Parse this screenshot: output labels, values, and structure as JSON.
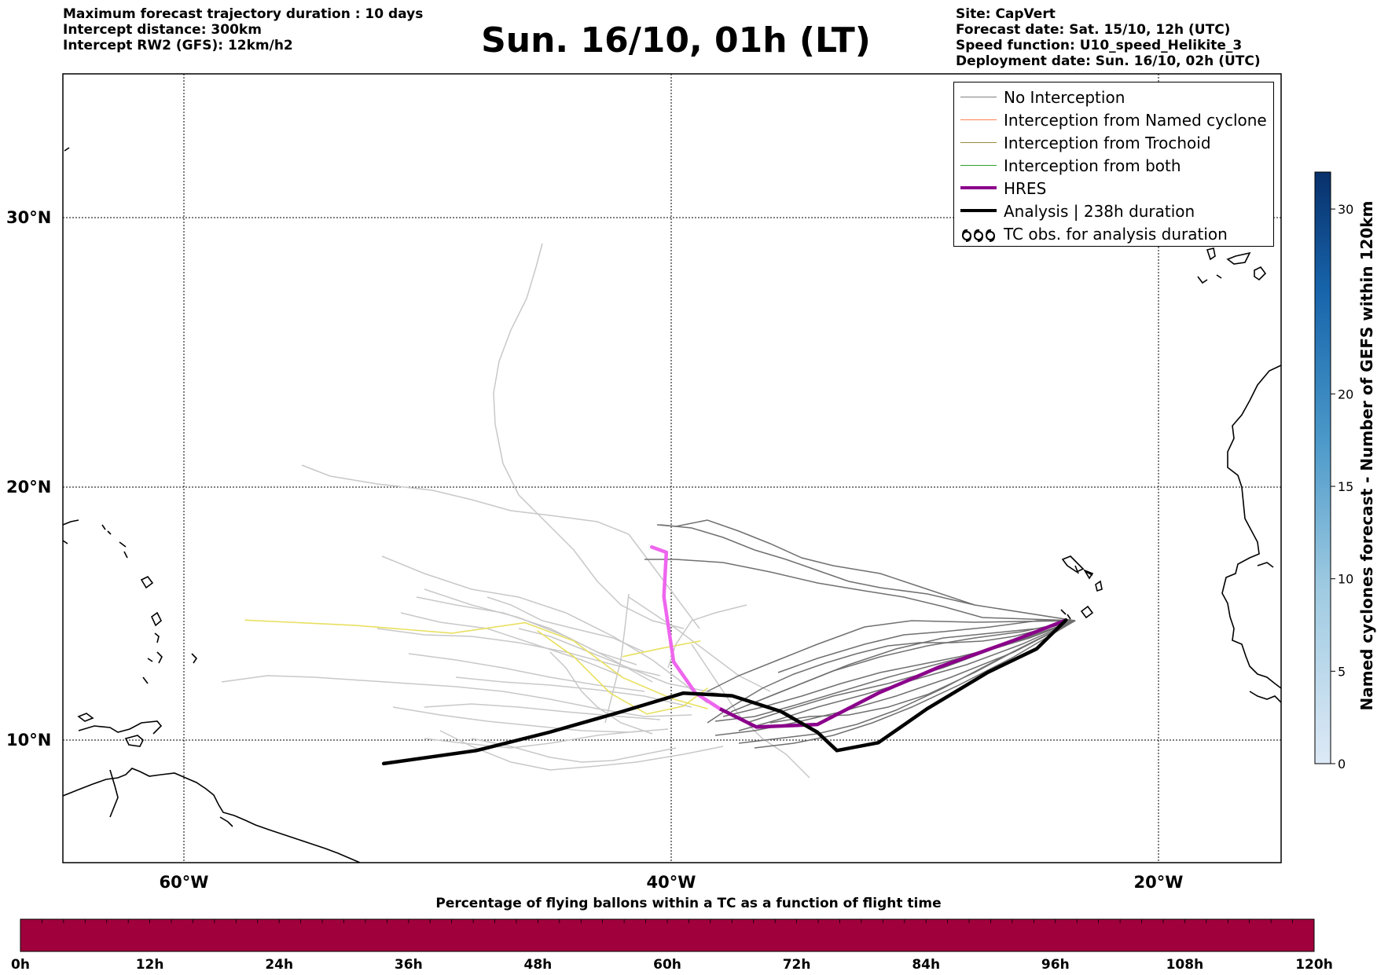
{
  "header_left": {
    "line1": "Maximum forecast trajectory duration : 10 days",
    "line2": "Intercept distance: 300km",
    "line3": "Intercept RW2 (GFS):  12km/h2"
  },
  "title": "Sun. 16/10, 01h (LT)",
  "header_right": {
    "line1": "Site: CapVert",
    "line2": "Forecast date: Sat. 15/10, 12h (UTC)",
    "line3": "Speed function: U10_speed_Helikite_3",
    "line4": "Deployment date: Sun. 16/10, 02h (UTC)"
  },
  "map": {
    "lon_range": [
      -65,
      -15
    ],
    "lat_range": [
      5,
      35
    ],
    "lat_labels": [
      "30°N",
      "20°N",
      "10°N"
    ],
    "lon_labels": [
      "60°W",
      "40°W",
      "20°W"
    ]
  },
  "legend": {
    "items": [
      {
        "label": "No Interception",
        "color": "#808080"
      },
      {
        "label": "Interception from Named cyclone",
        "color": "#ff7f50"
      },
      {
        "label": "Interception from Trochoid",
        "color": "#9a8a3a"
      },
      {
        "label": "Interception from both",
        "color": "#2ca02c"
      },
      {
        "label": "HRES",
        "color": "#8b008b"
      },
      {
        "label": "Analysis | 238h duration",
        "color": "#000000"
      },
      {
        "label": "TC obs. for analysis duration",
        "icon": "tc-symbol-icon"
      }
    ]
  },
  "right_colorbar": {
    "label": "Named cyclones forecast - Number of GEFS within 120km",
    "ticks": [
      "30",
      "20",
      "15",
      "10",
      "5",
      "0"
    ],
    "range": [
      0,
      32
    ]
  },
  "bottom_colorbar": {
    "caption": "Percentage of flying ballons within a TC as a function of flight time",
    "fill_color": "#a0003c",
    "ticks": [
      "0h",
      "12h",
      "24h",
      "36h",
      "48h",
      "60h",
      "72h",
      "84h",
      "96h",
      "108h",
      "120h"
    ]
  },
  "tracks": {
    "hres": [
      [
        -40.8,
        17.4
      ],
      [
        -40.2,
        17.2
      ],
      [
        -40.3,
        15.5
      ],
      [
        -39.9,
        13.0
      ],
      [
        -39.0,
        11.8
      ],
      [
        -38.0,
        11.2
      ],
      [
        -36.5,
        10.5
      ],
      [
        -34.0,
        10.6
      ],
      [
        -31.5,
        11.8
      ],
      [
        -29.0,
        12.8
      ],
      [
        -26.0,
        13.8
      ],
      [
        -23.8,
        14.6
      ]
    ],
    "analysis": [
      [
        -51.8,
        9.1
      ],
      [
        -48.0,
        9.6
      ],
      [
        -45.0,
        10.3
      ],
      [
        -42.0,
        11.1
      ],
      [
        -39.5,
        11.8
      ],
      [
        -37.5,
        11.7
      ],
      [
        -35.5,
        11.1
      ],
      [
        -34.0,
        10.3
      ],
      [
        -33.2,
        9.6
      ],
      [
        -31.5,
        9.9
      ],
      [
        -29.5,
        11.2
      ],
      [
        -27.0,
        12.6
      ],
      [
        -25.0,
        13.5
      ],
      [
        -23.8,
        14.6
      ]
    ],
    "yellow": [
      [
        [
          -57.5,
          14.6
        ],
        [
          -53.0,
          14.4
        ],
        [
          -49.0,
          14.1
        ],
        [
          -46.0,
          14.5
        ],
        [
          -44.0,
          13.8
        ],
        [
          -42.0,
          12.4
        ],
        [
          -40.0,
          11.6
        ],
        [
          -38.5,
          11.2
        ]
      ],
      [
        [
          -45.5,
          14.2
        ],
        [
          -44.0,
          13.2
        ],
        [
          -42.5,
          11.8
        ],
        [
          -41.0,
          11.0
        ],
        [
          -39.5,
          11.3
        ],
        [
          -38.5,
          12.0
        ]
      ],
      [
        [
          -42.0,
          13.2
        ],
        [
          -40.5,
          13.5
        ],
        [
          -38.8,
          13.8
        ]
      ]
    ]
  }
}
